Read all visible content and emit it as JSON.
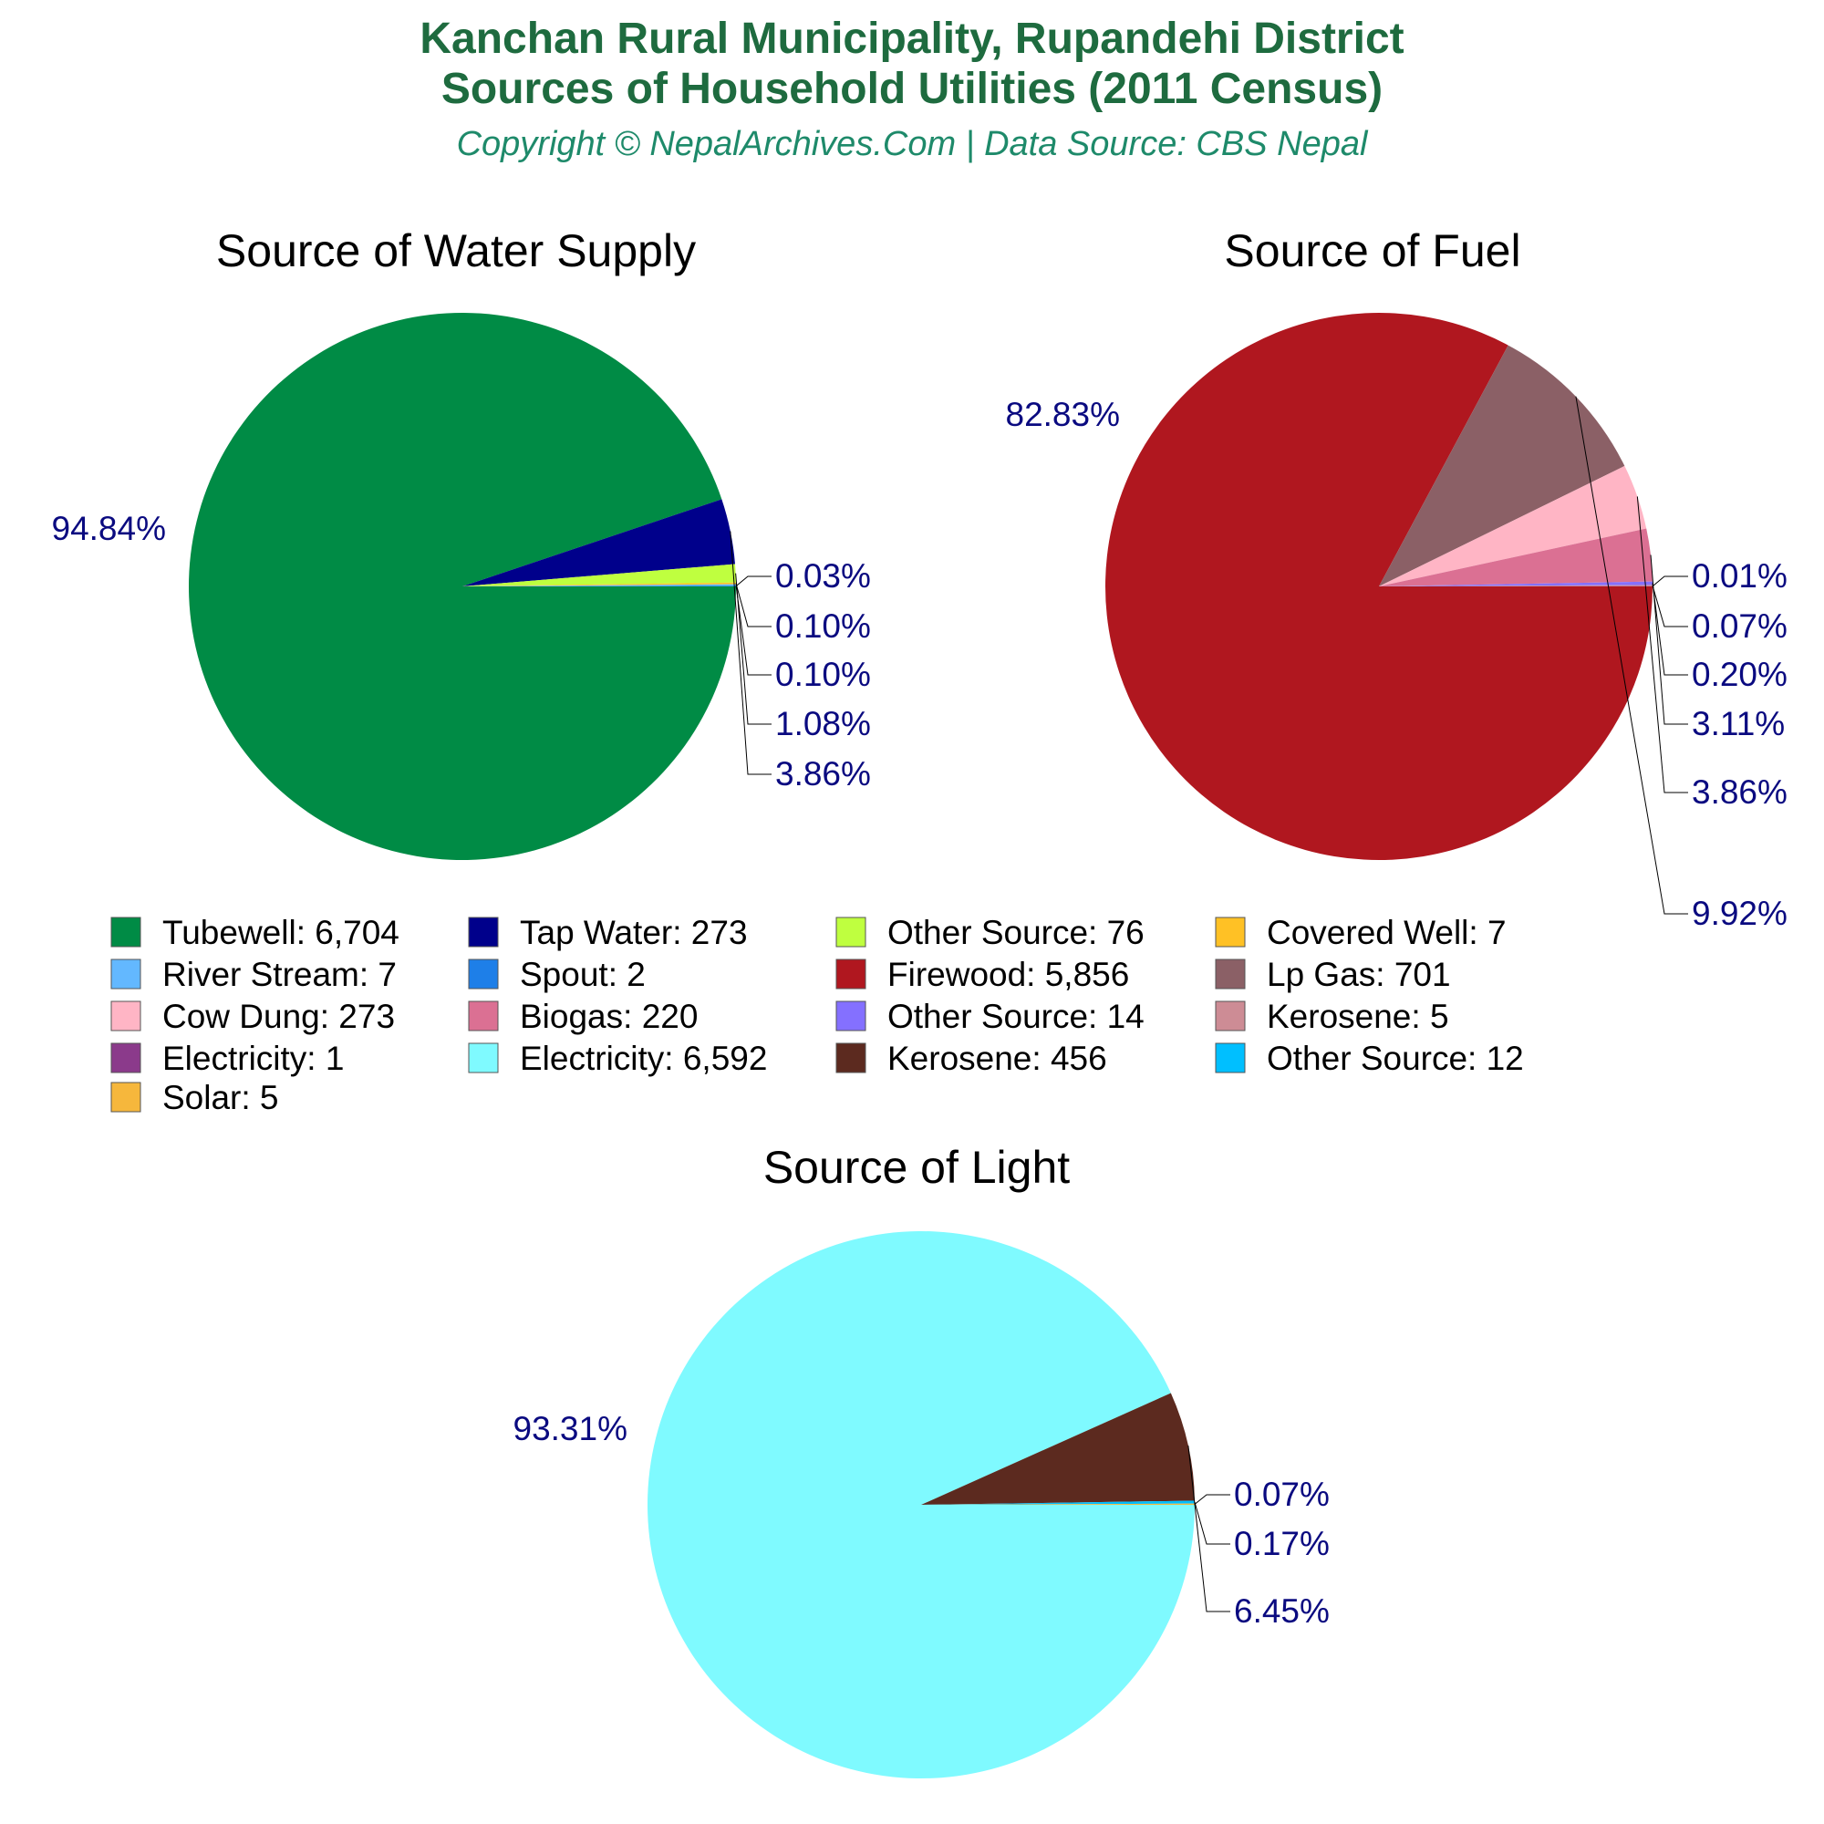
{
  "header": {
    "title_line1": "Kanchan Rural Municipality, Rupandehi District",
    "title_line2": "Sources of Household Utilities (2011 Census)",
    "subtitle": "Copyright © NepalArchives.Com | Data Source: CBS Nepal"
  },
  "chart_data": [
    {
      "type": "pie",
      "title": "Source of Water Supply",
      "slices": [
        {
          "name": "Tubewell",
          "value": 6704,
          "label": "94.84%",
          "color": "#008b45"
        },
        {
          "name": "Tap Water",
          "value": 273,
          "label": "3.86%",
          "color": "#00008b"
        },
        {
          "name": "Other Source",
          "value": 76,
          "label": "1.08%",
          "color": "#bfff3f"
        },
        {
          "name": "Covered Well",
          "value": 7,
          "label": "0.10%",
          "color": "#ffc125"
        },
        {
          "name": "River Stream",
          "value": 7,
          "label": "0.10%",
          "color": "#63b8ff"
        },
        {
          "name": "Spout",
          "value": 2,
          "label": "0.03%",
          "color": "#1e7fe8"
        }
      ]
    },
    {
      "type": "pie",
      "title": "Source of Fuel",
      "slices": [
        {
          "name": "Firewood",
          "value": 5856,
          "label": "82.83%",
          "color": "#b0171f"
        },
        {
          "name": "Lp Gas",
          "value": 701,
          "label": "9.92%",
          "color": "#8b6066"
        },
        {
          "name": "Cow Dung",
          "value": 273,
          "label": "3.86%",
          "color": "#ffb5c5"
        },
        {
          "name": "Biogas",
          "value": 220,
          "label": "3.11%",
          "color": "#db7093"
        },
        {
          "name": "Other Source",
          "value": 14,
          "label": "0.20%",
          "color": "#8470ff"
        },
        {
          "name": "Kerosene",
          "value": 5,
          "label": "0.07%",
          "color": "#cd8c95"
        },
        {
          "name": "Electricity",
          "value": 1,
          "label": "0.01%",
          "color": "#8b3a8b"
        }
      ]
    },
    {
      "type": "pie",
      "title": "Source of Light",
      "slices": [
        {
          "name": "Electricity",
          "value": 6592,
          "label": "93.31%",
          "color": "#7ffaff"
        },
        {
          "name": "Kerosene",
          "value": 456,
          "label": "6.45%",
          "color": "#5c2a1f"
        },
        {
          "name": "Other Source",
          "value": 12,
          "label": "0.17%",
          "color": "#00bfff"
        },
        {
          "name": "Solar",
          "value": 5,
          "label": "0.07%",
          "color": "#f6b73c"
        }
      ]
    }
  ],
  "legend": [
    {
      "label": "Tubewell: 6,704",
      "color": "#008b45"
    },
    {
      "label": "Tap Water: 273",
      "color": "#00008b"
    },
    {
      "label": "Other Source: 76",
      "color": "#bfff3f"
    },
    {
      "label": "Covered Well: 7",
      "color": "#ffc125"
    },
    {
      "label": "River Stream: 7",
      "color": "#63b8ff"
    },
    {
      "label": "Spout: 2",
      "color": "#1e7fe8"
    },
    {
      "label": "Firewood: 5,856",
      "color": "#b0171f"
    },
    {
      "label": "Lp Gas: 701",
      "color": "#8b6066"
    },
    {
      "label": "Cow Dung: 273",
      "color": "#ffb5c5"
    },
    {
      "label": "Biogas: 220",
      "color": "#db7093"
    },
    {
      "label": "Other Source: 14",
      "color": "#8470ff"
    },
    {
      "label": "Kerosene: 5",
      "color": "#cd8c95"
    },
    {
      "label": "Electricity: 1",
      "color": "#8b3a8b"
    },
    {
      "label": "Electricity: 6,592",
      "color": "#7ffaff"
    },
    {
      "label": "Kerosene: 456",
      "color": "#5c2a1f"
    },
    {
      "label": "Other Source: 12",
      "color": "#00bfff"
    },
    {
      "label": "Solar: 5",
      "color": "#f6b73c"
    }
  ]
}
